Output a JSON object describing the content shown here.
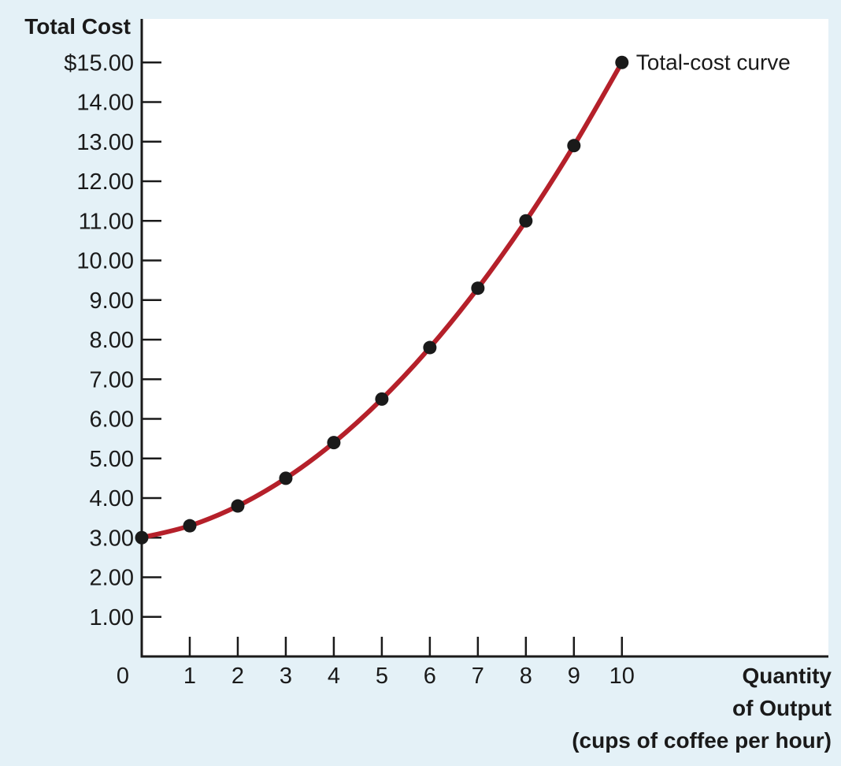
{
  "colors": {
    "background": "#e4f1f7",
    "plot_background": "#ffffff",
    "curve": "#b5202a",
    "point": "#1a1a1a",
    "axis": "#1a1a1a"
  },
  "chart_data": {
    "type": "line",
    "title": "",
    "ylabel": "Total Cost",
    "xlabel": [
      "Quantity",
      "of Output",
      "(cups of coffee per hour)"
    ],
    "x": [
      0,
      1,
      2,
      3,
      4,
      5,
      6,
      7,
      8,
      9,
      10
    ],
    "series": [
      {
        "values": [
          3.0,
          3.3,
          3.8,
          4.5,
          5.4,
          6.5,
          7.8,
          9.3,
          11.0,
          12.9,
          15.0
        ]
      }
    ],
    "xlim": [
      0,
      14.3
    ],
    "ylim": [
      0,
      16.1
    ],
    "xticks": [
      "0",
      "1",
      "2",
      "3",
      "4",
      "5",
      "6",
      "7",
      "8",
      "9",
      "10"
    ],
    "yticks": [
      {
        "value": 1,
        "label": "1.00"
      },
      {
        "value": 2,
        "label": "2.00"
      },
      {
        "value": 3,
        "label": "3.00"
      },
      {
        "value": 4,
        "label": "4.00"
      },
      {
        "value": 5,
        "label": "5.00"
      },
      {
        "value": 6,
        "label": "6.00"
      },
      {
        "value": 7,
        "label": "7.00"
      },
      {
        "value": 8,
        "label": "8.00"
      },
      {
        "value": 9,
        "label": "9.00"
      },
      {
        "value": 10,
        "label": "10.00"
      },
      {
        "value": 11,
        "label": "11.00"
      },
      {
        "value": 12,
        "label": "12.00"
      },
      {
        "value": 13,
        "label": "13.00"
      },
      {
        "value": 14,
        "label": "14.00"
      },
      {
        "value": 15,
        "label": "$15.00"
      }
    ],
    "annotation": {
      "text": "Total-cost curve",
      "x": 10,
      "y": 15
    },
    "grid": false,
    "legend": "none"
  }
}
